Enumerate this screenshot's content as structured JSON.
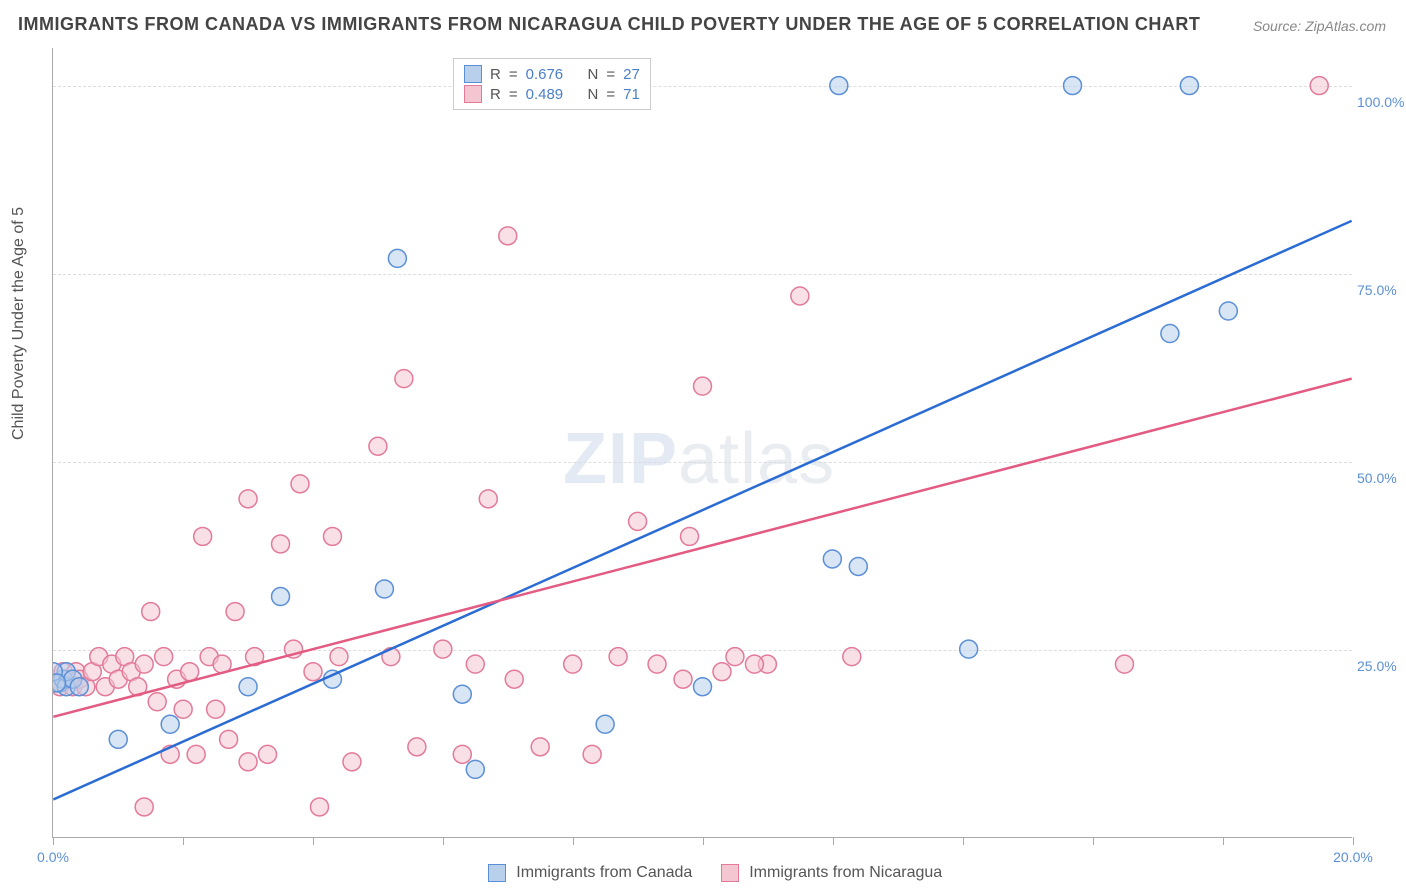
{
  "title": "IMMIGRANTS FROM CANADA VS IMMIGRANTS FROM NICARAGUA CHILD POVERTY UNDER THE AGE OF 5 CORRELATION CHART",
  "source_prefix": "Source: ",
  "source": "ZipAtlas.com",
  "ylabel": "Child Poverty Under the Age of 5",
  "watermark_a": "ZIP",
  "watermark_b": "atlas",
  "chart": {
    "type": "scatter",
    "xlim": [
      0,
      20
    ],
    "ylim": [
      0,
      105
    ],
    "x_ticks": [
      0,
      2,
      4,
      6,
      8,
      10,
      12,
      14,
      16,
      18,
      20
    ],
    "x_tick_labels": {
      "0": "0.0%",
      "20": "20.0%"
    },
    "y_gridlines": [
      25,
      50,
      75,
      100
    ],
    "y_tick_labels": {
      "25": "25.0%",
      "50": "50.0%",
      "75": "75.0%",
      "100": "100.0%"
    },
    "background_color": "#ffffff",
    "grid_color": "#dddddd",
    "axis_color": "#aaaaaa",
    "marker_radius": 9,
    "marker_stroke_width": 1.5,
    "line_width": 2.5
  },
  "series": [
    {
      "name": "Immigrants from Canada",
      "fill_color": "#b8d0ec",
      "stroke_color": "#5b8fd6",
      "fill_opacity": 0.55,
      "R": "0.676",
      "N": "27",
      "trend": {
        "x1": 0,
        "y1": 5,
        "x2": 20,
        "y2": 82,
        "color": "#2b6cd4"
      },
      "points": [
        [
          0.1,
          20.5
        ],
        [
          0.15,
          21
        ],
        [
          0.2,
          20
        ],
        [
          0.2,
          22
        ],
        [
          0.3,
          21
        ],
        [
          0.4,
          20
        ],
        [
          1.0,
          13
        ],
        [
          1.8,
          15
        ],
        [
          3.0,
          20
        ],
        [
          3.5,
          32
        ],
        [
          4.3,
          21
        ],
        [
          5.1,
          33
        ],
        [
          5.3,
          77
        ],
        [
          6.3,
          19
        ],
        [
          6.5,
          9
        ],
        [
          8.5,
          15
        ],
        [
          10.0,
          20
        ],
        [
          12.0,
          37
        ],
        [
          12.4,
          36
        ],
        [
          14.1,
          25
        ],
        [
          17.2,
          67
        ],
        [
          18.1,
          70
        ],
        [
          12.1,
          100
        ],
        [
          15.7,
          100
        ],
        [
          17.5,
          100
        ],
        [
          0.0,
          22
        ],
        [
          0.05,
          20.5
        ]
      ]
    },
    {
      "name": "Immigrants from Nicaragua",
      "fill_color": "#f3c6d2",
      "stroke_color": "#e37a9a",
      "fill_opacity": 0.55,
      "R": "0.489",
      "N": "71",
      "trend": {
        "x1": 0,
        "y1": 16,
        "x2": 20,
        "y2": 61,
        "color": "#e35a82"
      },
      "points": [
        [
          0.05,
          21
        ],
        [
          0.1,
          20
        ],
        [
          0.15,
          22
        ],
        [
          0.2,
          21
        ],
        [
          0.3,
          20
        ],
        [
          0.35,
          22
        ],
        [
          0.4,
          21
        ],
        [
          0.5,
          20
        ],
        [
          0.6,
          22
        ],
        [
          0.7,
          24
        ],
        [
          0.8,
          20
        ],
        [
          0.9,
          23
        ],
        [
          1.0,
          21
        ],
        [
          1.1,
          24
        ],
        [
          1.2,
          22
        ],
        [
          1.3,
          20
        ],
        [
          1.4,
          23
        ],
        [
          1.5,
          30
        ],
        [
          1.6,
          18
        ],
        [
          1.7,
          24
        ],
        [
          1.8,
          11
        ],
        [
          1.9,
          21
        ],
        [
          2.0,
          17
        ],
        [
          2.1,
          22
        ],
        [
          2.2,
          11
        ],
        [
          2.3,
          40
        ],
        [
          2.4,
          24
        ],
        [
          2.5,
          17
        ],
        [
          2.6,
          23
        ],
        [
          2.7,
          13
        ],
        [
          2.8,
          30
        ],
        [
          3.0,
          45
        ],
        [
          3.1,
          24
        ],
        [
          3.3,
          11
        ],
        [
          3.5,
          39
        ],
        [
          3.7,
          25
        ],
        [
          3.8,
          47
        ],
        [
          4.0,
          22
        ],
        [
          4.1,
          4
        ],
        [
          4.3,
          40
        ],
        [
          4.4,
          24
        ],
        [
          4.6,
          10
        ],
        [
          5.0,
          52
        ],
        [
          5.2,
          24
        ],
        [
          5.4,
          61
        ],
        [
          5.6,
          12
        ],
        [
          6.0,
          25
        ],
        [
          6.3,
          11
        ],
        [
          6.5,
          23
        ],
        [
          6.7,
          45
        ],
        [
          7.0,
          80
        ],
        [
          7.1,
          21
        ],
        [
          7.5,
          12
        ],
        [
          8.0,
          23
        ],
        [
          8.3,
          11
        ],
        [
          8.7,
          24
        ],
        [
          9.0,
          42
        ],
        [
          9.3,
          23
        ],
        [
          9.7,
          21
        ],
        [
          9.8,
          40
        ],
        [
          10.3,
          22
        ],
        [
          10.5,
          24
        ],
        [
          11.0,
          23
        ],
        [
          11.5,
          72
        ],
        [
          10.0,
          60
        ],
        [
          10.8,
          23
        ],
        [
          12.3,
          24
        ],
        [
          16.5,
          23
        ],
        [
          19.5,
          100
        ],
        [
          1.4,
          4
        ],
        [
          3.0,
          10
        ]
      ]
    }
  ],
  "legend_top": {
    "r_label": "R",
    "n_label": "N",
    "eq": "="
  },
  "legend_bottom": {
    "label_a": "Immigrants from Canada",
    "label_b": "Immigrants from Nicaragua"
  }
}
